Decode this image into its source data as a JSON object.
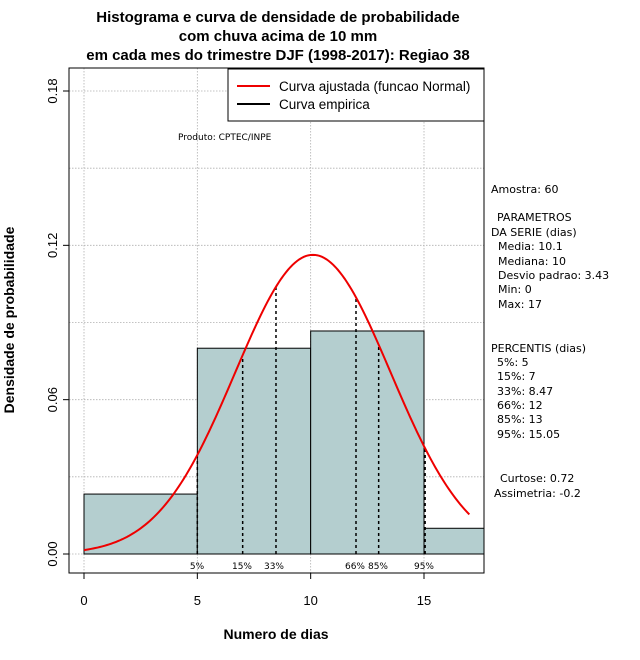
{
  "chart_data": {
    "type": "bar",
    "title_lines": [
      "Histograma e curva de densidade de probabilidade",
      "com chuva acima de 10 mm",
      "em cada mes do trimestre DJF (1998-2017): Regiao 38"
    ],
    "xlabel": "Numero de dias",
    "ylabel": "Densidade de probabilidade",
    "xlim": [
      -1,
      17.8
    ],
    "ylim": [
      0,
      0.18
    ],
    "x_ticks": [
      0,
      5,
      10,
      15
    ],
    "y_ticks": [
      0.0,
      0.06,
      0.12,
      0.18
    ],
    "y_tick_labels": [
      "0.00",
      "0.06",
      "0.12",
      "0.18"
    ],
    "grid": true,
    "bins": [
      {
        "start": 0,
        "end": 5,
        "density": 0.0233
      },
      {
        "start": 5,
        "end": 10,
        "density": 0.08
      },
      {
        "start": 10,
        "end": 15,
        "density": 0.0867
      },
      {
        "start": 15,
        "end": 17.8,
        "density": 0.01
      }
    ],
    "bar_color": "#b4cecf",
    "normal_curve": {
      "mean": 10.1,
      "sd": 3.43,
      "x_range": [
        0,
        17
      ],
      "color": "#ee0000"
    },
    "percentile_lines": [
      {
        "label": "5%",
        "x": 5
      },
      {
        "label": "15%",
        "x": 7
      },
      {
        "label": "33%",
        "x": 8.47
      },
      {
        "label": "66%",
        "x": 12
      },
      {
        "label": "85%",
        "x": 13
      },
      {
        "label": "95%",
        "x": 15.05
      }
    ],
    "legend": {
      "position": "top-right",
      "entries": [
        {
          "label": "Curva ajustada (funcao Normal)",
          "color": "#ee0000"
        },
        {
          "label": "Curva empirica",
          "color": "#000000"
        }
      ]
    },
    "annotation": "Produto: CPTEC/INPE"
  },
  "side_panel": {
    "sample": "Amostra: 60",
    "params_title_1": "PARAMETROS",
    "params_title_2": "DA SERIE (dias)",
    "params": [
      "Media: 10.1",
      "Mediana: 10",
      "Desvio padrao: 3.43",
      "Min: 0",
      "Max: 17"
    ],
    "percentis_title": "PERCENTIS (dias)",
    "percentis": [
      "5%: 5",
      "15%: 7",
      "33%: 8.47",
      "66%: 12",
      "85%: 13",
      "95%: 15.05"
    ],
    "curtose": "Curtose: 0.72",
    "assimetria": "Assimetria: -0.2"
  }
}
